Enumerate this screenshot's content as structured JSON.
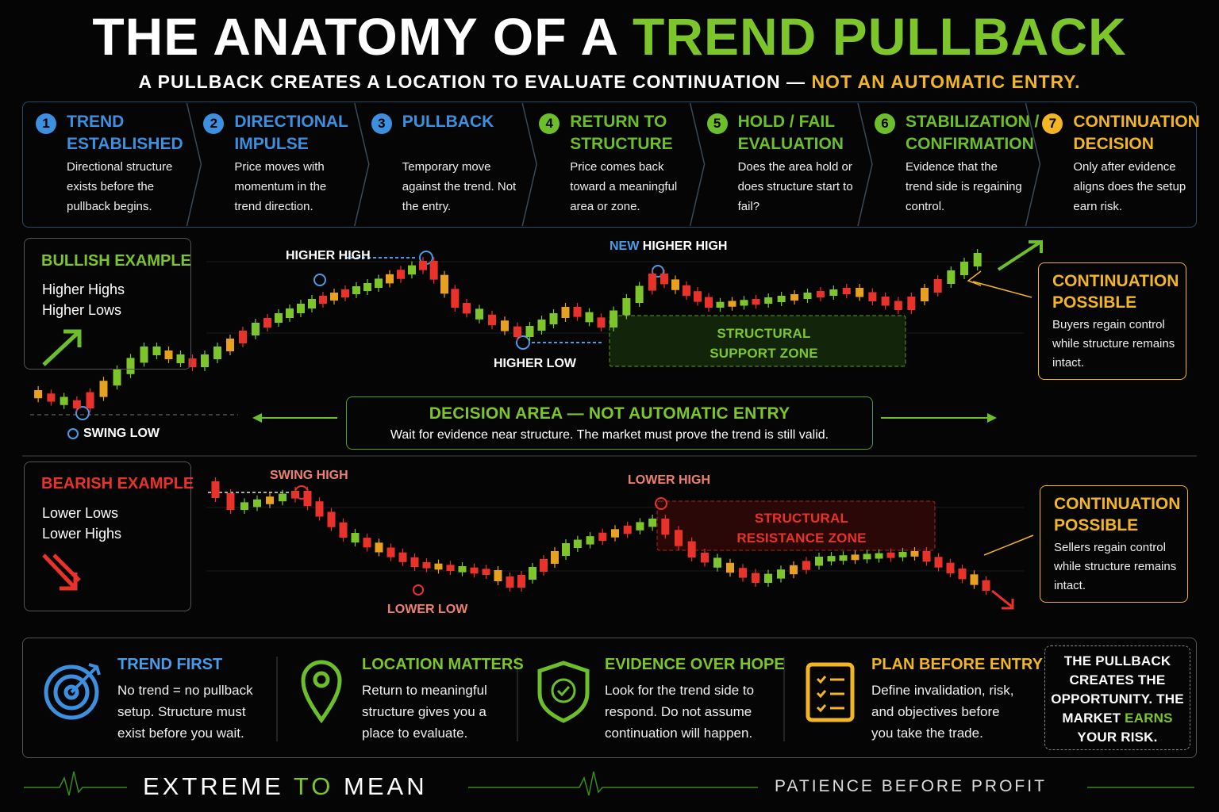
{
  "header": {
    "title_part1": "THE ANATOMY OF A",
    "title_part2": "TREND PULLBACK",
    "subtitle_part1": "A PULLBACK CREATES A LOCATION TO EVALUATE CONTINUATION —",
    "subtitle_part2": "NOT AN AUTOMATIC ENTRY."
  },
  "steps": [
    {
      "number": "1",
      "title": "TREND ESTABLISHED",
      "text": "Directional structure exists before the pullback begins."
    },
    {
      "number": "2",
      "title": "DIRECTIONAL IMPULSE",
      "text": "Price moves with momentum in the trend direction."
    },
    {
      "number": "3",
      "title": "PULLBACK",
      "text": "Temporary move against the trend. Not the entry."
    },
    {
      "number": "4",
      "title": "RETURN TO STRUCTURE",
      "text": "Price comes back toward a meaningful area or zone."
    },
    {
      "number": "5",
      "title": "HOLD / FAIL EVALUATION",
      "text": "Does the area hold or does structure start to fail?"
    },
    {
      "number": "6",
      "title": "STABILIZATION / CONFIRMATION",
      "text": "Evidence that the trend side is regaining control."
    },
    {
      "number": "7",
      "title": "CONTINUATION DECISION",
      "text": "Only after evidence aligns does the setup earn risk."
    }
  ],
  "bullish": {
    "title": "BULLISH EXAMPLE",
    "lines": [
      "Higher Highs",
      "Higher Lows"
    ],
    "higher_high": "HIGHER HIGH",
    "higher_low": "HIGHER LOW",
    "new_word": "NEW",
    "new_higher_high": "HIGHER HIGH",
    "swing_low": "SWING LOW",
    "zone": "STRUCTURAL SUPPORT ZONE",
    "continuation_title": "CONTINUATION POSSIBLE",
    "continuation_text": "Buyers regain control while structure remains intact."
  },
  "decision": {
    "title": "DECISION AREA — NOT AUTOMATIC ENTRY",
    "text": "Wait for evidence near structure. The market must prove the trend is still valid."
  },
  "bearish": {
    "title": "BEARISH EXAMPLE",
    "lines": [
      "Lower Lows",
      "Lower Highs"
    ],
    "swing_high": "SWING HIGH",
    "lower_high": "LOWER HIGH",
    "lower_low": "LOWER LOW",
    "zone": "STRUCTURAL RESISTANCE ZONE",
    "continuation_title": "CONTINUATION POSSIBLE",
    "continuation_text": "Sellers regain control while structure remains intact."
  },
  "principles": [
    {
      "title": "TREND FIRST",
      "text": "No trend = no pullback setup. Structure must exist before you wait."
    },
    {
      "title": "LOCATION MATTERS",
      "text": "Return to meaningful structure gives you a place to evaluate."
    },
    {
      "title": "EVIDENCE OVER HOPE",
      "text": "Look for the trend side to respond. Do not assume continuation will happen."
    },
    {
      "title": "PLAN BEFORE ENTRY",
      "text": "Define invalidation, risk, and objectives before you take the trade."
    }
  ],
  "callout": {
    "part1": "THE PULLBACK CREATES THE OPPORTUNITY. THE MARKET",
    "highlight": "EARNS",
    "part2": "YOUR RISK."
  },
  "footer": {
    "brand1": "EXTREME",
    "brand2": "TO",
    "brand3": "MEAN",
    "tagline": "PATIENCE BEFORE PROFIT"
  }
}
